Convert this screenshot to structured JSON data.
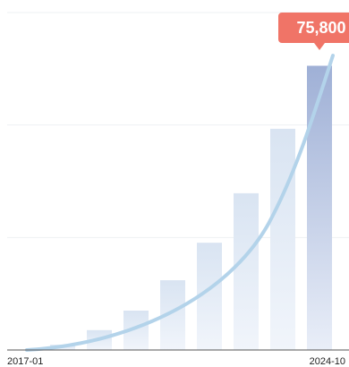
{
  "chart_data": {
    "type": "bar",
    "categories": [
      "2017-01",
      null,
      null,
      null,
      null,
      null,
      null,
      "2024-10"
    ],
    "values": [
      1400,
      5300,
      10500,
      18600,
      28600,
      41800,
      59000,
      75800
    ],
    "value_labels": [
      null,
      null,
      null,
      null,
      null,
      null,
      null,
      "75,800"
    ],
    "color": "#dce6f3",
    "highlight_color": "#a4b4d8",
    "label_color": "#f07467",
    "ylim": [
      0,
      90000
    ],
    "yticks": [
      0,
      30000,
      60000,
      90000
    ],
    "grid": true
  }
}
